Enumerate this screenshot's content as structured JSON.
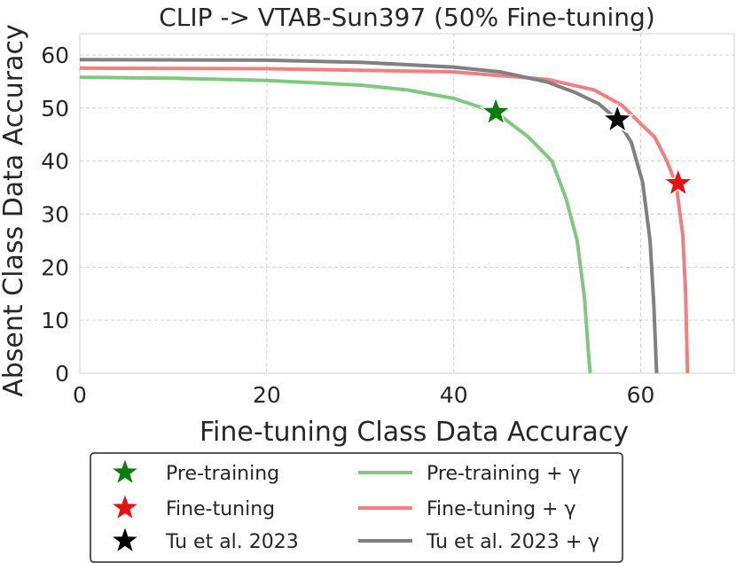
{
  "chart_data": {
    "type": "line",
    "title": "CLIP -> VTAB-Sun397 (50% Fine-tuning)",
    "xlabel": "Fine-tuning Class Data Accuracy",
    "ylabel": "Absent Class Data Accuracy",
    "xlim": [
      0,
      70
    ],
    "ylim": [
      0,
      64
    ],
    "xticks": [
      0,
      20,
      40,
      60
    ],
    "yticks": [
      0,
      10,
      20,
      30,
      40,
      50,
      60
    ],
    "grid": true,
    "legend_position": "bottom",
    "series": [
      {
        "name": "Pre-training + γ",
        "color": "#7fc97f",
        "x": [
          0,
          10,
          20,
          30,
          35,
          40,
          44.5,
          48,
          50.5,
          52,
          53.2,
          54,
          54.4,
          54.6
        ],
        "y": [
          55.8,
          55.6,
          55.2,
          54.3,
          53.4,
          51.8,
          49.2,
          44.5,
          40,
          33,
          25,
          14,
          4,
          0
        ]
      },
      {
        "name": "Fine-tuning + γ",
        "color": "#f08080",
        "x": [
          0,
          20,
          40,
          50,
          55,
          58,
          60,
          61.5,
          62.8,
          63.8,
          64.5,
          64.8,
          65
        ],
        "y": [
          57.5,
          57.4,
          56.8,
          55.4,
          53.4,
          50.5,
          47,
          44.5,
          40,
          35.5,
          26,
          15,
          0
        ]
      },
      {
        "name": "Tu et al. 2023 + γ",
        "color": "#808080",
        "x": [
          0,
          20,
          30,
          40,
          45,
          50,
          53,
          55.5,
          57.5,
          59,
          60.2,
          61,
          61.4,
          61.7
        ],
        "y": [
          59.1,
          59,
          58.6,
          57.7,
          56.8,
          54.9,
          52.9,
          50.8,
          47.8,
          43.5,
          36,
          25,
          13,
          0
        ]
      }
    ],
    "markers": [
      {
        "name": "Pre-training",
        "color": "#0b7d0b",
        "x": 44.5,
        "y": 49.2
      },
      {
        "name": "Fine-tuning",
        "color": "#e81010",
        "x": 64,
        "y": 35.8
      },
      {
        "name": "Tu et al. 2023",
        "color": "#000000",
        "x": 57.5,
        "y": 47.8
      }
    ]
  }
}
